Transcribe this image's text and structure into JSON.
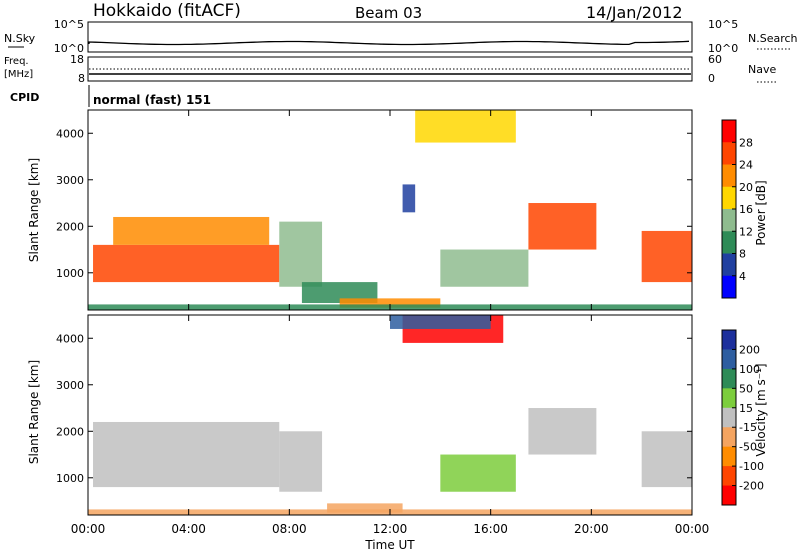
{
  "header": {
    "station": "Hokkaido (fitACF)",
    "beam": "Beam 03",
    "date": "14/Jan/2012"
  },
  "noise_panel": {
    "left_label": "N.Sky",
    "left_ticks": [
      "10^5",
      "10^0"
    ],
    "right_label": "N.Search",
    "right_ticks": [
      "10^5",
      "10^0"
    ]
  },
  "freq_panel": {
    "left_label_top": "Freq.",
    "left_label_bottom": "[MHz]",
    "left_ticks": [
      "18",
      "8"
    ],
    "right_label": "Nave",
    "right_ticks": [
      "60",
      "0"
    ]
  },
  "cpid_panel": {
    "label": "CPID",
    "text": "normal (fast) 151"
  },
  "axes": {
    "ylabel": "Slant Range [km]",
    "y_ticks": [
      "1000",
      "2000",
      "3000",
      "4000"
    ],
    "x_ticks": [
      "00:00",
      "04:00",
      "08:00",
      "12:00",
      "16:00",
      "20:00",
      "00:00"
    ],
    "xlabel": "Time UT"
  },
  "power_scale": {
    "label": "Power [dB]",
    "ticks": [
      "4",
      "8",
      "12",
      "16",
      "20",
      "24",
      "28"
    ],
    "colors": [
      "#0000ff",
      "#2040a0",
      "#2e8b57",
      "#8fbc8f",
      "#ffd700",
      "#ff8c00",
      "#ff4500",
      "#ff0000"
    ]
  },
  "velocity_scale": {
    "label": "Velocity [m s⁻¹]",
    "ticks": [
      "200",
      "100",
      "50",
      "15",
      "-15",
      "-50",
      "-100",
      "-200"
    ],
    "colors": [
      "#1c2f9c",
      "#2e5ea0",
      "#2e8b57",
      "#7ccd3c",
      "#c0c0c0",
      "#f4a460",
      "#ff8c00",
      "#ff4500",
      "#ff0000"
    ]
  },
  "chart_data": {
    "type": "heatmap",
    "x_range_hours": [
      0,
      24
    ],
    "y_range_km": [
      200,
      4500
    ],
    "grid": false,
    "panels": [
      {
        "quantity": "Power",
        "units": "dB",
        "cbar_range": [
          0,
          30
        ],
        "patches": [
          {
            "t0": 0.2,
            "t1": 7.6,
            "r0": 800,
            "r1": 1600,
            "v": 26
          },
          {
            "t0": 1.0,
            "t1": 7.2,
            "r0": 1600,
            "r1": 2200,
            "v": 22
          },
          {
            "t0": 7.6,
            "t1": 9.3,
            "r0": 700,
            "r1": 2100,
            "v": 12
          },
          {
            "t0": 8.5,
            "t1": 11.5,
            "r0": 350,
            "r1": 800,
            "v": 8
          },
          {
            "t0": 10.0,
            "t1": 14.0,
            "r0": 250,
            "r1": 450,
            "v": 20
          },
          {
            "t0": 12.5,
            "t1": 13.0,
            "r0": 2300,
            "r1": 2900,
            "v": 6
          },
          {
            "t0": 14.0,
            "t1": 17.5,
            "r0": 700,
            "r1": 1500,
            "v": 14
          },
          {
            "t0": 17.5,
            "t1": 20.2,
            "r0": 1500,
            "r1": 2500,
            "v": 24
          },
          {
            "t0": 13.0,
            "t1": 17.0,
            "r0": 3800,
            "r1": 4500,
            "v": 18
          },
          {
            "t0": 22.0,
            "t1": 24.0,
            "r0": 800,
            "r1": 1900,
            "v": 26
          },
          {
            "t0": 0.0,
            "t1": 24.0,
            "r0": 200,
            "r1": 320,
            "v": 10
          }
        ]
      },
      {
        "quantity": "Velocity",
        "units": "m s-1",
        "cbar_range": [
          -250,
          250
        ],
        "patches": [
          {
            "t0": 0.2,
            "t1": 7.6,
            "r0": 800,
            "r1": 2200,
            "v": 0
          },
          {
            "t0": 7.6,
            "t1": 9.3,
            "r0": 700,
            "r1": 2000,
            "v": 0
          },
          {
            "t0": 12.5,
            "t1": 16.5,
            "r0": 3900,
            "r1": 4500,
            "v": -200
          },
          {
            "t0": 12.0,
            "t1": 16.0,
            "r0": 4200,
            "r1": 4500,
            "v": 150
          },
          {
            "t0": 14.0,
            "t1": 17.0,
            "r0": 700,
            "r1": 1500,
            "v": 30
          },
          {
            "t0": 17.5,
            "t1": 20.2,
            "r0": 1500,
            "r1": 2500,
            "v": 0
          },
          {
            "t0": 22.0,
            "t1": 24.0,
            "r0": 800,
            "r1": 2000,
            "v": 0
          },
          {
            "t0": 9.5,
            "t1": 12.5,
            "r0": 250,
            "r1": 450,
            "v": -60
          },
          {
            "t0": 0.0,
            "t1": 24.0,
            "r0": 200,
            "r1": 320,
            "v": -40
          }
        ]
      }
    ]
  }
}
